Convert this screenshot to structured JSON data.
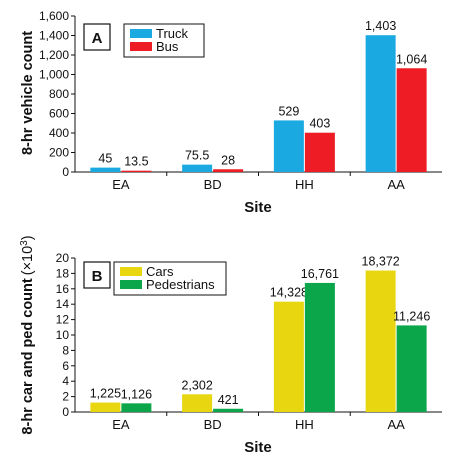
{
  "chart_data": [
    {
      "type": "bar",
      "panel": "A",
      "categories": [
        "EA",
        "BD",
        "HH",
        "AA"
      ],
      "series": [
        {
          "name": "Truck",
          "values": [
            45,
            75.5,
            529,
            1403
          ],
          "labels": [
            "45",
            "75.5",
            "529",
            "1,403"
          ],
          "color": "#1ba9e1"
        },
        {
          "name": "Bus",
          "values": [
            13.5,
            28,
            403,
            1064
          ],
          "labels": [
            "13.5",
            "28",
            "403",
            "1,064"
          ],
          "color": "#ee1c25"
        }
      ],
      "xlabel": "Site",
      "ylabel": "8-hr vehicle count",
      "ylim": [
        0,
        1600
      ],
      "yticks": [
        0,
        200,
        400,
        600,
        800,
        1000,
        1200,
        1400,
        1600
      ],
      "ytick_labels": [
        "0",
        "200",
        "400",
        "600",
        "800",
        "1,000",
        "1,200",
        "1,400",
        "1,600"
      ],
      "grid": false,
      "legend": "top-left"
    },
    {
      "type": "bar",
      "panel": "B",
      "categories": [
        "EA",
        "BD",
        "HH",
        "AA"
      ],
      "series": [
        {
          "name": "Cars",
          "values": [
            1225,
            2302,
            14328,
            18372
          ],
          "labels": [
            "1,225",
            "2,302",
            "14,328",
            "18,372"
          ],
          "color": "#e8d610"
        },
        {
          "name": "Pedestrians",
          "values": [
            1126,
            421,
            16761,
            11246
          ],
          "labels": [
            "1,126",
            "421",
            "16,761",
            "11,246"
          ],
          "color": "#0ba64a"
        }
      ],
      "xlabel": "Site",
      "ylabel": "8-hr car and ped count",
      "ylabel_unit": "(×10",
      "ylabel_unit_exp": "3",
      "ylabel_unit_close": ")",
      "ylim": [
        0,
        20
      ],
      "yticks": [
        0,
        2,
        4,
        6,
        8,
        10,
        12,
        14,
        16,
        18,
        20
      ],
      "ytick_labels": [
        "0",
        "2",
        "4",
        "6",
        "8",
        "10",
        "12",
        "14",
        "16",
        "18",
        "20"
      ],
      "value_scale": 0.001,
      "grid": false,
      "legend": "top-left"
    }
  ]
}
